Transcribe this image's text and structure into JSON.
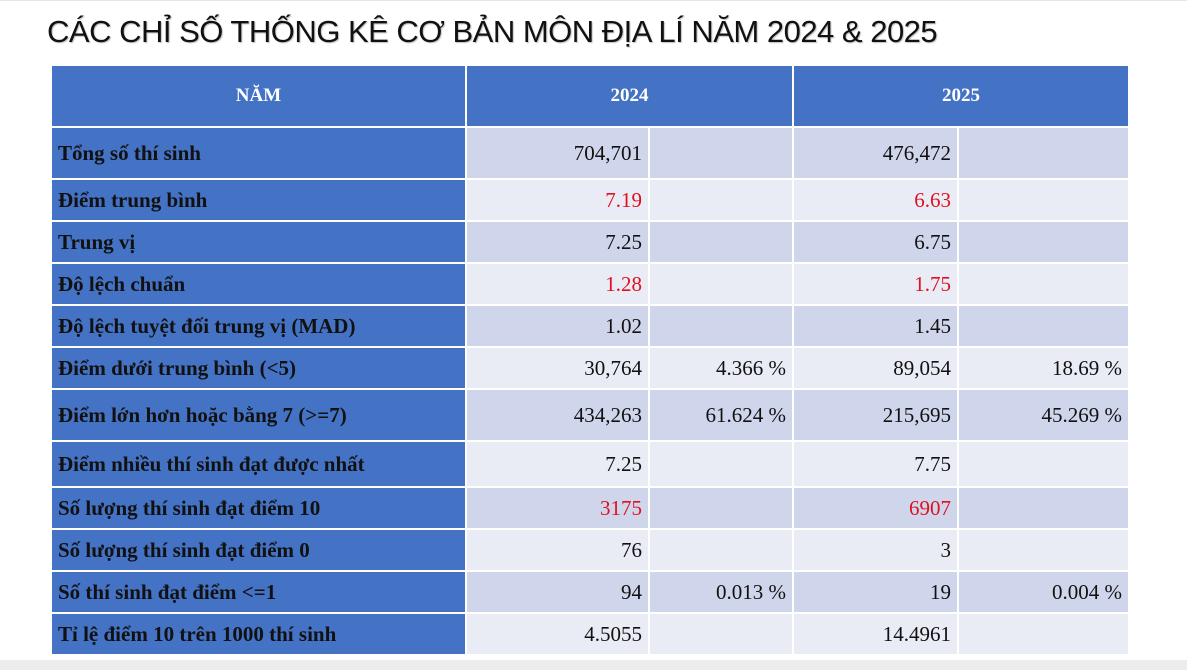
{
  "title": "CÁC CHỈ SỐ THỐNG KÊ CƠ BẢN MÔN ĐỊA LÍ NĂM 2024 & 2025",
  "header": {
    "col_label": "NĂM",
    "year_a": "2024",
    "year_b": "2025"
  },
  "colors": {
    "header_blue": "#4472c4",
    "row_dark": "#cfd5ea",
    "row_light": "#e9ebf5",
    "highlight_red": "#e0101f"
  },
  "rows": [
    {
      "label": "Tổng số thí sinh",
      "v2024": "704,701",
      "p2024": "",
      "v2025": "476,472",
      "p2025": "",
      "red": false
    },
    {
      "label": "Điểm trung bình",
      "v2024": "7.19",
      "p2024": "",
      "v2025": "6.63",
      "p2025": "",
      "red": true
    },
    {
      "label": "Trung vị",
      "v2024": "7.25",
      "p2024": "",
      "v2025": "6.75",
      "p2025": "",
      "red": false
    },
    {
      "label": "Độ lệch chuẩn",
      "v2024": "1.28",
      "p2024": "",
      "v2025": "1.75",
      "p2025": "",
      "red": true
    },
    {
      "label": "Độ lệch tuyệt đối trung vị (MAD)",
      "v2024": "1.02",
      "p2024": "",
      "v2025": "1.45",
      "p2025": "",
      "red": false
    },
    {
      "label": "Điểm dưới trung bình (<5)",
      "v2024": "30,764",
      "p2024": "4.366 %",
      "v2025": "89,054",
      "p2025": "18.69 %",
      "red": false
    },
    {
      "label": "Điểm lớn hơn hoặc bằng 7 (>=7)",
      "v2024": "434,263",
      "p2024": "61.624 %",
      "v2025": "215,695",
      "p2025": "45.269 %",
      "red": false
    },
    {
      "label": "Điểm nhiều thí sinh đạt được nhất",
      "v2024": "7.25",
      "p2024": "",
      "v2025": "7.75",
      "p2025": "",
      "red": false
    },
    {
      "label": "Số lượng thí sinh đạt điểm 10",
      "v2024": "3175",
      "p2024": "",
      "v2025": "6907",
      "p2025": "",
      "red": true
    },
    {
      "label": "Số lượng thí sinh đạt điểm 0",
      "v2024": "76",
      "p2024": "",
      "v2025": "3",
      "p2025": "",
      "red": false
    },
    {
      "label": "Số thí sinh đạt điểm <=1",
      "v2024": "94",
      "p2024": "0.013 %",
      "v2025": "19",
      "p2025": "0.004 %",
      "red": false
    },
    {
      "label": "Tỉ lệ điểm 10 trên 1000 thí sinh",
      "v2024": "4.5055",
      "p2024": "",
      "v2025": "14.4961",
      "p2025": "",
      "red": false
    }
  ]
}
